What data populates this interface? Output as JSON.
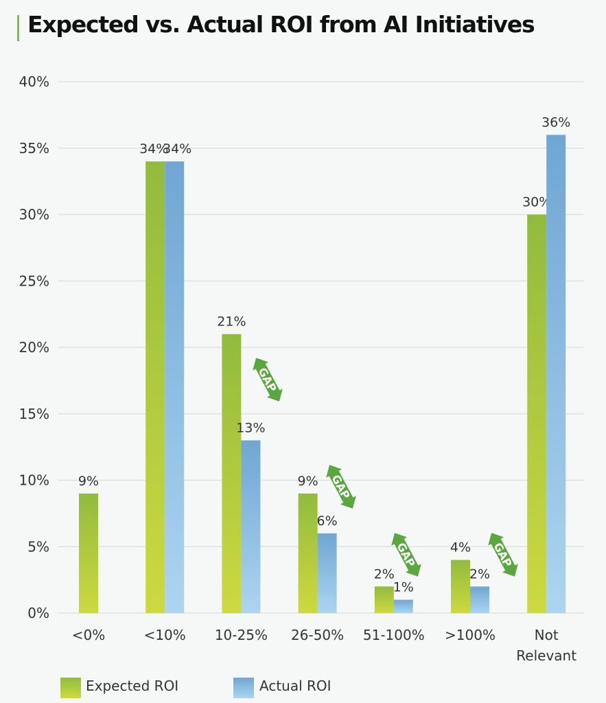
{
  "chart_data": {
    "type": "bar",
    "title": "Expected vs. Actual ROI from AI Initiatives",
    "xlabel": "",
    "ylabel": "",
    "ylim": [
      0,
      40
    ],
    "yticks": [
      "0%",
      "5%",
      "10%",
      "15%",
      "20%",
      "25%",
      "30%",
      "35%",
      "40%"
    ],
    "grid": true,
    "legend_position": "bottom-left",
    "categories": [
      "<0%",
      "<10%",
      "10-25%",
      "26-50%",
      "51-100%",
      ">100%",
      "Not Relevant"
    ],
    "series": [
      {
        "name": "Expected ROI",
        "color": "#9cbf3c",
        "values": [
          9,
          34,
          21,
          9,
          2,
          4,
          30
        ]
      },
      {
        "name": "Actual ROI",
        "color": "#79aed8",
        "values": [
          null,
          34,
          13,
          6,
          1,
          2,
          36
        ]
      }
    ],
    "annotations": [
      {
        "text": "GAP",
        "category": "10-25%"
      },
      {
        "text": "GAP",
        "category": "26-50%"
      },
      {
        "text": "GAP",
        "category": "51-100%"
      },
      {
        "text": "GAP",
        "category": ">100%"
      }
    ]
  }
}
